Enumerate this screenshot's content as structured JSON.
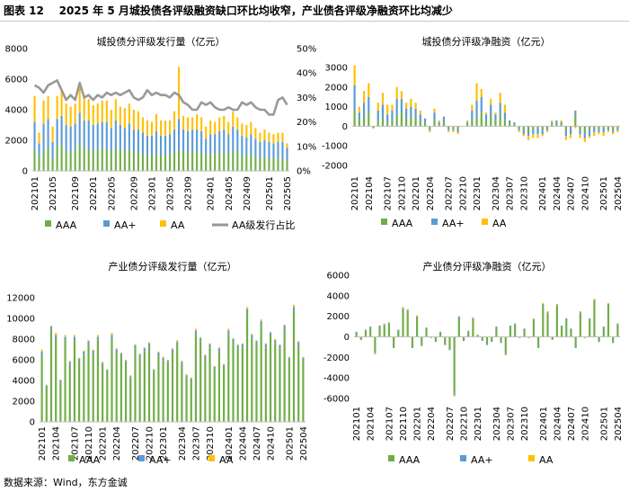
{
  "figure_title": "图表 12    2025 年 5 月城投债各评级融资缺口环比均收窄，产业债各评级净融资环比均减少",
  "source": "数据来源：Wind，东方金诚",
  "colors": {
    "AAA": "#70ad47",
    "AA+": "#5b9bd5",
    "AA": "#ffc000",
    "ratio": "#375623"
  },
  "chart_data": [
    {
      "type": "bar",
      "stacked": true,
      "title": "城投债分评级发行量（亿元）",
      "ylim": [
        0,
        8000
      ],
      "y_ticks": [
        "0",
        "2000",
        "4000",
        "6000",
        "8000"
      ],
      "y2lim": [
        0,
        50
      ],
      "y2_ticks": [
        "0%",
        "10%",
        "20%",
        "30%",
        "40%",
        "50%"
      ],
      "x_tick_labels": [
        "202101",
        "202105",
        "202109",
        "202201",
        "202205",
        "202209",
        "202301",
        "202305",
        "202309",
        "202401",
        "202405",
        "202409",
        "202501",
        "202505"
      ],
      "legend": [
        "AAA",
        "AA+",
        "AA",
        "AA级发行占比"
      ],
      "series": [
        {
          "name": "AAA",
          "values": [
            1400,
            900,
            1300,
            1500,
            800,
            1600,
            1700,
            1300,
            1200,
            1400,
            1800,
            1500,
            1500,
            1300,
            1400,
            1500,
            1400,
            1300,
            1500,
            1400,
            1300,
            1400,
            1200,
            1200,
            1100,
            1000,
            1000,
            1100,
            1000,
            1000,
            1100,
            1200,
            1400,
            1300,
            1200,
            1300,
            1200,
            1200,
            1000,
            1100,
            1100,
            1200,
            1200,
            1100,
            1300,
            1300,
            1000,
            1000,
            1100,
            900,
            800,
            900,
            800,
            800,
            800,
            800,
            700
          ]
        },
        {
          "name": "AA+",
          "values": [
            1800,
            900,
            1800,
            1900,
            1100,
            1800,
            1900,
            1700,
            1700,
            1700,
            2000,
            1800,
            1800,
            1700,
            1700,
            1700,
            1800,
            1500,
            1800,
            1600,
            1500,
            1700,
            1500,
            1500,
            1400,
            1300,
            1300,
            1500,
            1300,
            1300,
            1300,
            1500,
            2000,
            1400,
            1400,
            1400,
            1500,
            1400,
            1100,
            1300,
            1300,
            1400,
            1500,
            1300,
            1600,
            1400,
            1300,
            1200,
            1300,
            1200,
            1100,
            1100,
            1100,
            1000,
            1100,
            1100,
            800
          ]
        },
        {
          "name": "AA",
          "values": [
            1700,
            700,
            1500,
            1500,
            1000,
            1500,
            1700,
            1400,
            1300,
            1300,
            1900,
            1500,
            1400,
            1300,
            1300,
            1400,
            1400,
            1200,
            1400,
            1200,
            1300,
            1300,
            1300,
            1200,
            1000,
            1000,
            900,
            1100,
            1000,
            1000,
            900,
            1200,
            3400,
            900,
            900,
            800,
            1000,
            900,
            800,
            900,
            800,
            900,
            900,
            800,
            1000,
            800,
            800,
            800,
            800,
            700,
            600,
            700,
            600,
            600,
            600,
            600,
            300
          ]
        },
        {
          "name": "AA级发行占比",
          "axis": "right",
          "values": [
            35,
            34,
            32,
            35,
            36,
            37,
            33,
            29,
            31,
            29,
            36,
            30,
            31,
            29,
            31,
            30,
            32,
            31,
            32,
            31,
            32,
            33,
            30,
            29,
            30,
            33,
            31,
            32,
            31,
            31,
            30,
            32,
            31,
            28,
            27,
            25,
            25,
            28,
            27,
            28,
            26,
            25,
            25,
            26,
            25,
            25,
            28,
            27,
            28,
            26,
            25,
            25,
            23,
            23,
            29,
            30,
            27
          ]
        }
      ]
    },
    {
      "type": "bar",
      "stacked": true,
      "title": "城投债分评级净融资（亿元）",
      "ylim": [
        -2000,
        3000
      ],
      "y_ticks": [
        "-2000",
        "-1000",
        "0",
        "1000",
        "2000",
        "3000"
      ],
      "x_tick_labels": [
        "202101",
        "202104",
        "202107",
        "202110",
        "202201",
        "202204",
        "202207",
        "202210",
        "202301",
        "202304",
        "202307",
        "202310",
        "202401",
        "202404",
        "202407",
        "202410",
        "202501",
        "202504"
      ],
      "legend": [
        "AAA",
        "AA+",
        "AA"
      ],
      "series": [
        {
          "name": "AAA",
          "values": [
            800,
            300,
            500,
            700,
            -100,
            300,
            400,
            200,
            300,
            600,
            700,
            400,
            500,
            400,
            300,
            200,
            -100,
            300,
            100,
            200,
            -100,
            -100,
            -200,
            0,
            100,
            300,
            500,
            700,
            300,
            500,
            300,
            600,
            300,
            200,
            100,
            -100,
            -200,
            -300,
            -200,
            -100,
            -200,
            -100,
            100,
            200,
            100,
            -200,
            -100,
            600,
            -200,
            -300,
            -200,
            -100,
            -200,
            -100,
            -100,
            -200,
            -100
          ]
        },
        {
          "name": "AA+",
          "values": [
            1300,
            400,
            700,
            800,
            0,
            500,
            700,
            400,
            500,
            800,
            700,
            500,
            500,
            500,
            300,
            200,
            -100,
            400,
            100,
            300,
            -100,
            -100,
            -100,
            0,
            100,
            500,
            800,
            800,
            300,
            600,
            300,
            600,
            400,
            100,
            100,
            -100,
            -200,
            -200,
            -200,
            -300,
            -200,
            -100,
            100,
            100,
            100,
            -300,
            -300,
            200,
            -200,
            -300,
            -300,
            -200,
            -100,
            -200,
            -100,
            -100,
            -100
          ]
        },
        {
          "name": "AA",
          "values": [
            1000,
            300,
            600,
            700,
            0,
            400,
            600,
            500,
            300,
            600,
            400,
            300,
            400,
            300,
            200,
            0,
            -100,
            200,
            100,
            0,
            -100,
            -100,
            -100,
            0,
            100,
            300,
            900,
            400,
            100,
            300,
            100,
            500,
            400,
            0,
            0,
            -100,
            -100,
            -200,
            -200,
            -200,
            -100,
            -100,
            100,
            0,
            100,
            -200,
            -200,
            -100,
            -200,
            -200,
            -100,
            -200,
            -100,
            -200,
            -100,
            -100,
            -100
          ]
        }
      ]
    },
    {
      "type": "bar",
      "stacked": true,
      "title": "产业债分评级发行量（亿元）",
      "ylim": [
        0,
        12000
      ],
      "y_ticks": [
        "0",
        "2000",
        "4000",
        "6000",
        "8000",
        "10000",
        "12000"
      ],
      "x_tick_labels": [
        "202101",
        "202104",
        "202107",
        "202110",
        "202201",
        "202204",
        "202207",
        "202210",
        "202301",
        "202304",
        "202307",
        "202310",
        "202401",
        "202404",
        "202407",
        "202410",
        "202501",
        "202504"
      ],
      "legend": [
        "AAA",
        "AA+",
        "AA"
      ],
      "series": [
        {
          "name": "AAA",
          "values": [
            6400,
            3300,
            8900,
            8100,
            3800,
            7900,
            5500,
            7900,
            5900,
            6500,
            7500,
            6600,
            7900,
            5500,
            4700,
            8100,
            6700,
            6400,
            5700,
            4200,
            7100,
            6200,
            6800,
            7300,
            4800,
            6400,
            5900,
            5700,
            6700,
            7400,
            5600,
            4300,
            4000,
            8500,
            7800,
            6100,
            7200,
            5100,
            6800,
            5300,
            8500,
            7700,
            7100,
            7200,
            10600,
            8100,
            7500,
            9400,
            7200,
            8300,
            7600,
            7100,
            9000,
            6000,
            10700,
            7400,
            6000
          ]
        },
        {
          "name": "AA+",
          "values": [
            400,
            200,
            300,
            300,
            200,
            300,
            300,
            300,
            200,
            300,
            300,
            300,
            300,
            200,
            300,
            300,
            300,
            200,
            200,
            200,
            300,
            300,
            300,
            300,
            200,
            300,
            300,
            200,
            300,
            300,
            200,
            200,
            200,
            300,
            300,
            300,
            300,
            200,
            300,
            200,
            300,
            300,
            300,
            300,
            300,
            300,
            300,
            300,
            300,
            300,
            300,
            300,
            300,
            200,
            400,
            300,
            200
          ]
        },
        {
          "name": "AA",
          "values": [
            200,
            100,
            100,
            200,
            100,
            200,
            100,
            200,
            100,
            100,
            100,
            100,
            200,
            100,
            100,
            200,
            100,
            100,
            100,
            100,
            100,
            100,
            100,
            100,
            100,
            100,
            100,
            100,
            100,
            200,
            100,
            100,
            100,
            200,
            100,
            100,
            100,
            100,
            100,
            100,
            200,
            100,
            100,
            100,
            200,
            100,
            100,
            200,
            100,
            100,
            100,
            100,
            100,
            100,
            200,
            100,
            100
          ]
        }
      ]
    },
    {
      "type": "bar",
      "stacked": true,
      "title": "产业债分评级净融资（亿元）",
      "ylim": [
        -6000,
        6000
      ],
      "y_ticks": [
        "-6000",
        "-4000",
        "-2000",
        "0",
        "2000",
        "4000",
        "6000"
      ],
      "x_tick_labels": [
        "202101",
        "202104",
        "202107",
        "202110",
        "202201",
        "202204",
        "202207",
        "202210",
        "202301",
        "202304",
        "202307",
        "202310",
        "202401",
        "202404",
        "202407",
        "202410",
        "202501",
        "202504"
      ],
      "legend": [
        "AAA",
        "AA+",
        "AA"
      ],
      "series": [
        {
          "name": "AAA",
          "values": [
            400,
            -300,
            600,
            900,
            -1500,
            1000,
            1100,
            1300,
            -1000,
            600,
            2700,
            2500,
            -1000,
            1900,
            -800,
            800,
            -100,
            -400,
            400,
            -700,
            -1200,
            -5500,
            1900,
            -300,
            500,
            1700,
            200,
            -300,
            -700,
            -400,
            900,
            -500,
            -1600,
            1000,
            1200,
            -100,
            700,
            -100,
            1600,
            -1000,
            3100,
            2300,
            -300,
            3000,
            1000,
            1700,
            700,
            -1000,
            2300,
            -100,
            1700,
            3500,
            -400,
            900,
            3100,
            -500,
            1200
          ]
        },
        {
          "name": "AA+",
          "values": [
            100,
            0,
            100,
            100,
            -100,
            100,
            100,
            100,
            -100,
            100,
            100,
            100,
            -100,
            100,
            -100,
            100,
            0,
            -100,
            100,
            -100,
            -100,
            -200,
            100,
            -100,
            100,
            100,
            0,
            -100,
            -100,
            -100,
            100,
            -100,
            -100,
            100,
            100,
            0,
            100,
            0,
            100,
            -100,
            100,
            100,
            0,
            100,
            100,
            100,
            100,
            -100,
            100,
            0,
            100,
            100,
            -100,
            100,
            100,
            -100,
            100
          ]
        },
        {
          "name": "AA",
          "values": [
            0,
            0,
            0,
            0,
            -100,
            0,
            100,
            0,
            0,
            0,
            100,
            100,
            0,
            100,
            0,
            0,
            0,
            0,
            0,
            0,
            0,
            -100,
            0,
            0,
            0,
            100,
            0,
            0,
            0,
            0,
            0,
            0,
            -100,
            0,
            0,
            0,
            0,
            0,
            100,
            0,
            100,
            100,
            0,
            100,
            0,
            0,
            0,
            0,
            100,
            0,
            0,
            100,
            0,
            0,
            100,
            0,
            0
          ]
        }
      ]
    }
  ]
}
